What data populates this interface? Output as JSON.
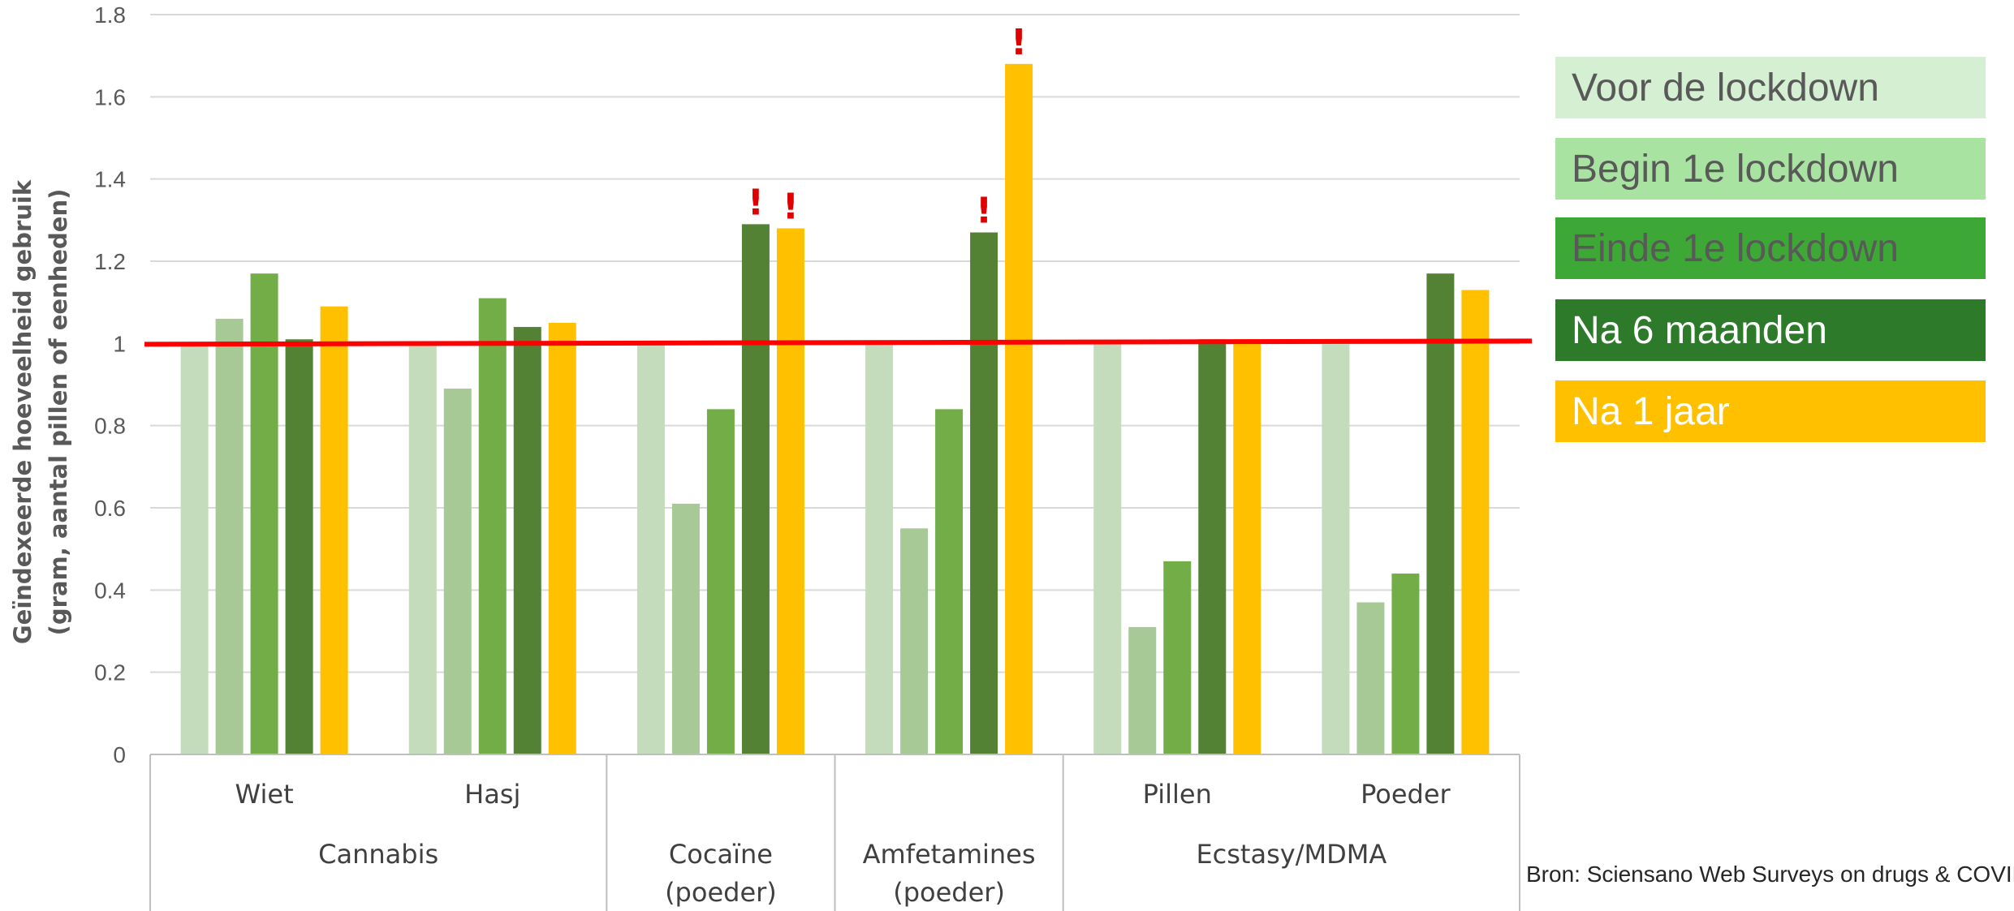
{
  "chart_data": {
    "type": "bar",
    "ylabel_line1": "Geïndexeerde hoeveelheid gebruik",
    "ylabel_line2": "(gram,  aantal pillen of eenheden)",
    "ylim": [
      0,
      1.8
    ],
    "yticks": [
      "0",
      "0.2",
      "0.4",
      "0.6",
      "0.8",
      "1",
      "1.2",
      "1.4",
      "1.6",
      "1.8"
    ],
    "grid": true,
    "legend_position": "right",
    "categories": [
      {
        "label": "Wiet",
        "group": "Cannabis"
      },
      {
        "label": "Hasj",
        "group": "Cannabis"
      },
      {
        "label": "",
        "group": "Cocaïne (poeder)"
      },
      {
        "label": "",
        "group": "Amfetamines (poeder)"
      },
      {
        "label": "Pillen",
        "group": "Ecstasy/MDMA"
      },
      {
        "label": "Poeder",
        "group": "Ecstasy/MDMA"
      }
    ],
    "groups": [
      {
        "lines": [
          "Cannabis"
        ],
        "span": [
          0,
          1
        ]
      },
      {
        "lines": [
          "Cocaïne",
          "(poeder)"
        ],
        "span": [
          2,
          2
        ]
      },
      {
        "lines": [
          "Amfetamines",
          "(poeder)"
        ],
        "span": [
          3,
          3
        ]
      },
      {
        "lines": [
          "Ecstasy/MDMA"
        ],
        "span": [
          4,
          5
        ]
      }
    ],
    "series": [
      {
        "name": "Voor de lockdown",
        "color": "#c5dcbc",
        "values": [
          1.0,
          1.0,
          1.0,
          1.0,
          1.0,
          1.0
        ]
      },
      {
        "name": "Begin 1e lockdown",
        "color": "#a6c996",
        "values": [
          1.06,
          0.89,
          0.61,
          0.55,
          0.31,
          0.37
        ]
      },
      {
        "name": "Einde 1e lockdown",
        "color": "#72ad47",
        "values": [
          1.17,
          1.11,
          0.84,
          0.84,
          0.47,
          0.44
        ]
      },
      {
        "name": "Na 6 maanden",
        "color": "#538235",
        "values": [
          1.01,
          1.04,
          1.29,
          1.27,
          1.01,
          1.17
        ]
      },
      {
        "name": "Na 1 jaar",
        "color": "#ffc000",
        "values": [
          1.09,
          1.05,
          1.28,
          1.68,
          1.01,
          1.13
        ]
      }
    ],
    "reference_line": {
      "value": 1.0,
      "color": "#ff0000"
    },
    "annotations": [
      {
        "text": "!",
        "category": 2,
        "series": 3,
        "color": "#e00000"
      },
      {
        "text": "!",
        "category": 2,
        "series": 4,
        "color": "#e00000"
      },
      {
        "text": "!",
        "category": 3,
        "series": 3,
        "color": "#e00000"
      },
      {
        "text": "!",
        "category": 3,
        "series": 4,
        "color": "#e00000"
      }
    ],
    "legend": [
      {
        "label": "Voor de lockdown",
        "bg": "#d5efd2",
        "text_color": "#595959"
      },
      {
        "label": "Begin 1e lockdown",
        "bg": "#a9e3a2",
        "text_color": "#595959"
      },
      {
        "label": "Einde 1e lockdown",
        "bg": "#3da835",
        "text_color": "#595959"
      },
      {
        "label": "Na 6 maanden",
        "bg": "#2c7a2a",
        "text_color": "#ffffff"
      },
      {
        "label": "Na 1 jaar",
        "bg": "#ffc000",
        "text_color": "#ffffff"
      }
    ],
    "source": "Bron: Sciensano Web Surveys on drugs & COVID"
  }
}
